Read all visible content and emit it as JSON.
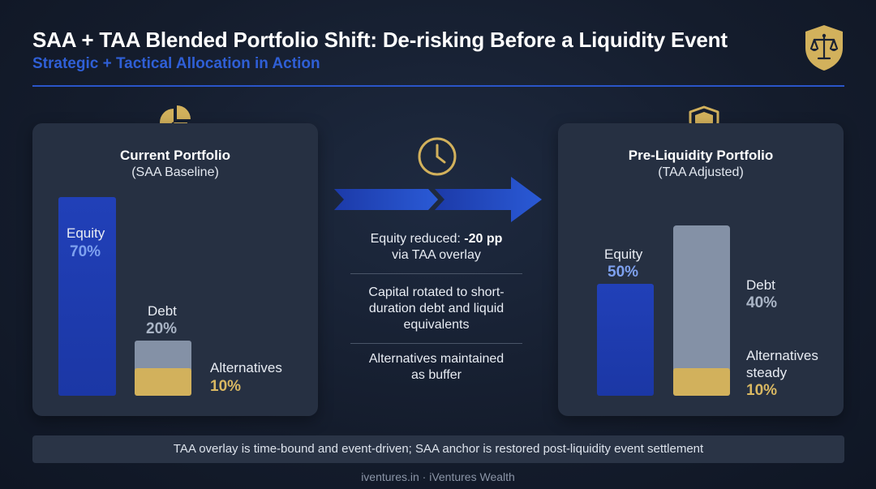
{
  "header": {
    "title": "SAA + TAA Blended Portfolio Shift: De-risking Before a Liquidity Event",
    "subtitle": "Strategic + Tactical Allocation in Action",
    "logo_icon": "scales-of-justice-icon"
  },
  "current": {
    "title": "Current Portfolio",
    "subtitle": "(SAA Baseline)",
    "icon": "pie-chart-icon",
    "equity": {
      "label": "Equity",
      "pct": "70%",
      "value": 70
    },
    "debt": {
      "label": "Debt",
      "pct": "20%",
      "value": 20
    },
    "alternatives": {
      "label": "Alternatives",
      "pct": "10%",
      "value": 10
    }
  },
  "middle": {
    "icon": "clock-icon",
    "arrow_icon": "double-arrow-right-icon",
    "note1_prefix": "Equity reduced: ",
    "note1_bold": "-20 pp",
    "note1_suffix": "via TAA overlay",
    "note2_line1": "Capital rotated to short-",
    "note2_line2": "duration debt and liquid",
    "note2_line3": "equivalents",
    "note3_line1": "Alternatives maintained",
    "note3_line2": "as buffer"
  },
  "target": {
    "title": "Pre-Liquidity Portfolio",
    "subtitle": "(TAA Adjusted)",
    "icon": "shield-icon",
    "equity": {
      "label": "Equity",
      "pct": "50%",
      "value": 50
    },
    "debt": {
      "label": "Debt",
      "pct": "40%",
      "value": 40
    },
    "alternatives": {
      "label_line1": "Alternatives",
      "label_line2": "steady",
      "pct": "10%",
      "value": 10
    }
  },
  "footer": {
    "note": "TAA overlay is time-bound and event-driven; SAA anchor is restored post-liquidity event settlement",
    "credit": "iventures.in · iVentures Wealth"
  },
  "colors": {
    "equity": "#1f3db0",
    "debt": "#8491a6",
    "alternatives": "#d2b15c",
    "accent": "#2f5fd6"
  }
}
